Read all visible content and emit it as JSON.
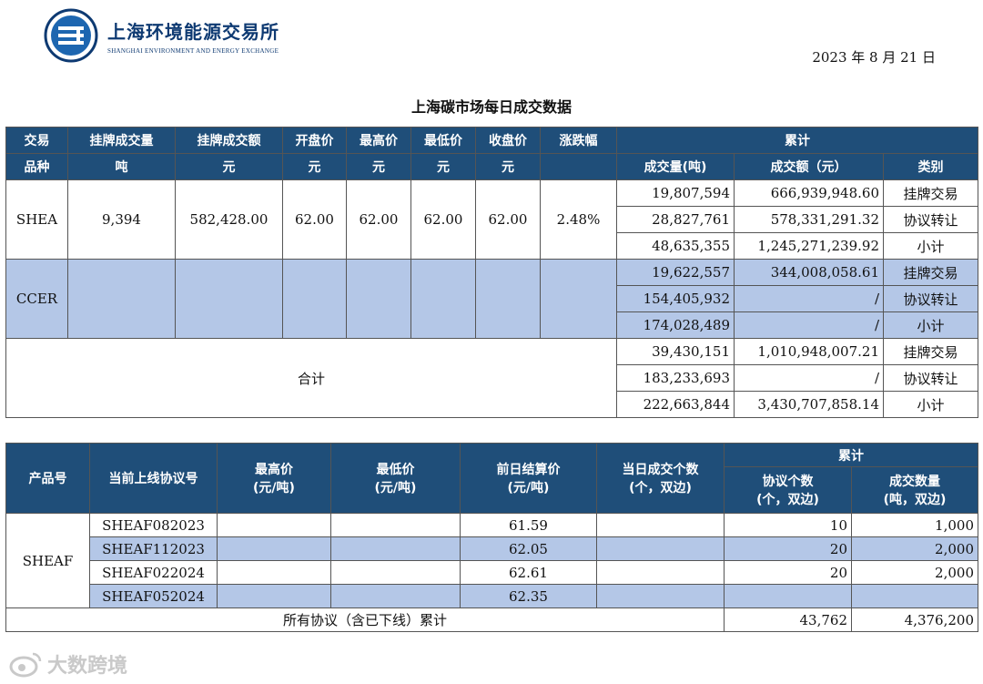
{
  "header": {
    "org_cn": "上海环境能源交易所",
    "org_en": "SHANGHAI ENVIRONMENT AND ENERGY EXCHANGE",
    "date": "2023 年 8 月 21 日",
    "title": "上海碳市场每日成交数据"
  },
  "colors": {
    "header_bg": "#1f4e79",
    "highlight": "#b4c7e7",
    "logo": "#0e3a72"
  },
  "table1": {
    "headers": {
      "product": "交易品种",
      "product_l1": "交易",
      "product_l2": "品种",
      "listed_vol": "挂牌成交量",
      "listed_vol_unit": "吨",
      "listed_amt": "挂牌成交额",
      "listed_amt_unit": "元",
      "open": "开盘价",
      "open_unit": "元",
      "high": "最高价",
      "high_unit": "元",
      "low": "最低价",
      "low_unit": "元",
      "close": "收盘价",
      "close_unit": "元",
      "change": "涨跌幅",
      "cumulative": "累计",
      "cum_vol": "成交量(吨)",
      "cum_amt": "成交额（元）",
      "category": "类别"
    },
    "shea": {
      "name": "SHEA",
      "listed_vol": "9,394",
      "listed_amt": "582,428.00",
      "open": "62.00",
      "high": "62.00",
      "low": "62.00",
      "close": "62.00",
      "change": "2.48%",
      "rows": [
        {
          "vol": "19,807,594",
          "amt": "666,939,948.60",
          "cat": "挂牌交易"
        },
        {
          "vol": "28,827,761",
          "amt": "578,331,291.32",
          "cat": "协议转让"
        },
        {
          "vol": "48,635,355",
          "amt": "1,245,271,239.92",
          "cat": "小计"
        }
      ]
    },
    "ccer": {
      "name": "CCER",
      "rows": [
        {
          "vol": "19,622,557",
          "amt": "344,008,058.61",
          "cat": "挂牌交易"
        },
        {
          "vol": "154,405,932",
          "amt": "/",
          "cat": "协议转让"
        },
        {
          "vol": "174,028,489",
          "amt": "/",
          "cat": "小计"
        }
      ]
    },
    "total": {
      "name": "合计",
      "rows": [
        {
          "vol": "39,430,151",
          "amt": "1,010,948,007.21",
          "cat": "挂牌交易"
        },
        {
          "vol": "183,233,693",
          "amt": "/",
          "cat": "协议转让"
        },
        {
          "vol": "222,663,844",
          "amt": "3,430,707,858.14",
          "cat": "小计"
        }
      ]
    }
  },
  "table2": {
    "headers": {
      "product": "产品号",
      "contract": "当前上线协议号",
      "high_l1": "最高价",
      "high_l2": "(元/吨)",
      "low_l1": "最低价",
      "low_l2": "(元/吨)",
      "settle_l1": "前日结算价",
      "settle_l2": "(元/吨)",
      "count_l1": "当日成交个数",
      "count_l2": "(个，双边)",
      "cumulative": "累计",
      "cum_count_l1": "协议个数",
      "cum_count_l2": "(个，双边)",
      "cum_qty_l1": "成交数量",
      "cum_qty_l2": "(吨，双边)"
    },
    "product": "SHEAF",
    "rows": [
      {
        "contract": "SHEAF082023",
        "high": "",
        "low": "",
        "settle": "61.59",
        "count": "",
        "cum_count": "10",
        "cum_qty": "1,000"
      },
      {
        "contract": "SHEAF112023",
        "high": "",
        "low": "",
        "settle": "62.05",
        "count": "",
        "cum_count": "20",
        "cum_qty": "2,000"
      },
      {
        "contract": "SHEAF022024",
        "high": "",
        "low": "",
        "settle": "62.61",
        "count": "",
        "cum_count": "20",
        "cum_qty": "2,000"
      },
      {
        "contract": "SHEAF052024",
        "high": "",
        "low": "",
        "settle": "62.35",
        "count": "",
        "cum_count": "",
        "cum_qty": ""
      }
    ],
    "footer": {
      "label": "所有协议（含已下线）累计",
      "cum_count": "43,762",
      "cum_qty": "4,376,200"
    }
  },
  "watermark": {
    "text": "大数跨境",
    "icon": "weibo-icon"
  }
}
